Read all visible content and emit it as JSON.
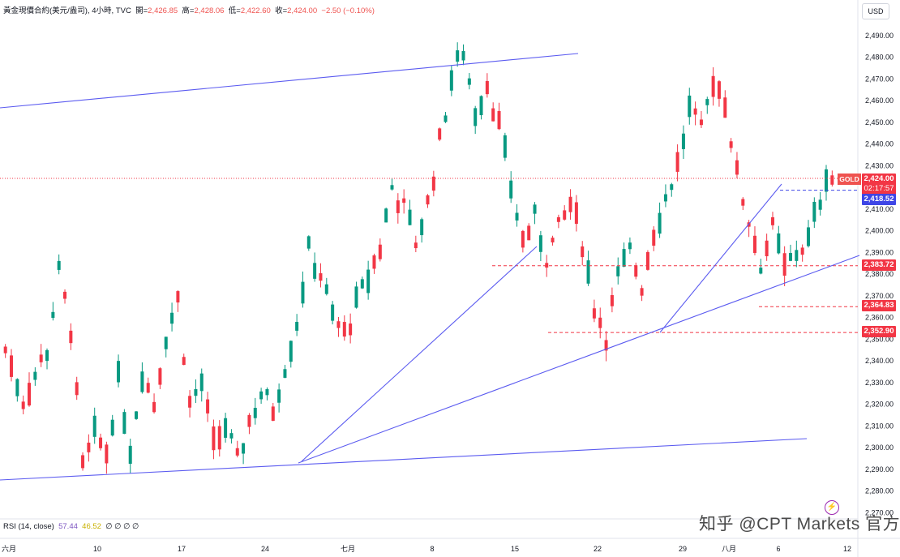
{
  "legend": {
    "symbol": "黃金現價合約(美元/盎司), 4小時, TVC",
    "open_label": "開=",
    "open": "2,426.85",
    "high_label": "高=",
    "high": "2,428.06",
    "low_label": "低=",
    "low": "2,422.60",
    "close_label": "收=",
    "close": "2,424.00",
    "change": "−2.50 (−0.10%)"
  },
  "currency_button": "USD",
  "rsi_indicator": {
    "label": "RSI (14, close)",
    "value1": "57.44",
    "value2": "46.52",
    "empties": "∅ ∅ ∅ ∅"
  },
  "watermark": "知乎 @CPT Markets 官方",
  "alert_icon": "lightning-icon",
  "price_tags": {
    "current": "2,424.00",
    "countdown": "02:17:57",
    "level_blue": "2,418.52",
    "level1": "2,383.72",
    "level2": "2,364.83",
    "level3": "2,352.90",
    "symbol_tag": "GOLD"
  },
  "colors": {
    "up": "#089981",
    "down": "#f23645",
    "trendline": "#5b5bf0",
    "dashed_red": "#f23645",
    "blue_tag": "#3e46e6"
  },
  "chart_data": {
    "type": "candlestick",
    "y_axis_ticks": [
      "2,490.00",
      "2,480.00",
      "2,470.00",
      "2,460.00",
      "2,450.00",
      "2,440.00",
      "2,430.00",
      "2,420.00",
      "2,410.00",
      "2,400.00",
      "2,390.00",
      "2,380.00",
      "2,370.00",
      "2,360.00",
      "2,350.00",
      "2,340.00",
      "2,330.00",
      "2,320.00",
      "2,310.00",
      "2,300.00",
      "2,290.00",
      "2,280.00",
      "2,270.00"
    ],
    "y_range": [
      2267,
      2495
    ],
    "x_axis_ticks": [
      "六月",
      "10",
      "17",
      "24",
      "七月",
      "8",
      "15",
      "22",
      "29",
      "八月",
      "6",
      "12"
    ],
    "path_points": [
      [
        0,
        2345
      ],
      [
        3,
        2322
      ],
      [
        7,
        2345
      ],
      [
        9,
        2380
      ],
      [
        11,
        2355
      ],
      [
        13,
        2290
      ],
      [
        15,
        2305
      ],
      [
        17,
        2298
      ],
      [
        19,
        2330
      ],
      [
        21,
        2300
      ],
      [
        23,
        2335
      ],
      [
        25,
        2320
      ],
      [
        27,
        2352
      ],
      [
        29,
        2368
      ],
      [
        31,
        2320
      ],
      [
        33,
        2330
      ],
      [
        35,
        2300
      ],
      [
        37,
        2310
      ],
      [
        39,
        2293
      ],
      [
        41,
        2312
      ],
      [
        43,
        2325
      ],
      [
        45,
        2318
      ],
      [
        47,
        2338
      ],
      [
        49,
        2358
      ],
      [
        51,
        2390
      ],
      [
        53,
        2380
      ],
      [
        55,
        2360
      ],
      [
        57,
        2352
      ],
      [
        59,
        2365
      ],
      [
        61,
        2378
      ],
      [
        63,
        2392
      ],
      [
        65,
        2420
      ],
      [
        67,
        2410
      ],
      [
        69,
        2395
      ],
      [
        71,
        2412
      ],
      [
        73,
        2440
      ],
      [
        75,
        2470
      ],
      [
        77,
        2483
      ],
      [
        79,
        2455
      ],
      [
        81,
        2468
      ],
      [
        83,
        2448
      ],
      [
        85,
        2420
      ],
      [
        87,
        2395
      ],
      [
        89,
        2405
      ],
      [
        91,
        2388
      ],
      [
        93,
        2400
      ],
      [
        95,
        2412
      ],
      [
        97,
        2395
      ],
      [
        99,
        2365
      ],
      [
        101,
        2352
      ],
      [
        103,
        2378
      ],
      [
        105,
        2390
      ],
      [
        107,
        2375
      ],
      [
        109,
        2400
      ],
      [
        111,
        2415
      ],
      [
        113,
        2430
      ],
      [
        115,
        2455
      ],
      [
        117,
        2445
      ],
      [
        119,
        2470
      ],
      [
        121,
        2460
      ],
      [
        123,
        2425
      ],
      [
        125,
        2405
      ],
      [
        127,
        2385
      ],
      [
        129,
        2400
      ],
      [
        131,
        2382
      ],
      [
        133,
        2390
      ],
      [
        135,
        2395
      ],
      [
        137,
        2415
      ],
      [
        138,
        2427
      ],
      [
        139,
        2424
      ]
    ],
    "x_count": 140,
    "trendlines_note": "price trendlines drawn on chart",
    "horizontal_levels": [
      2418.52,
      2383.72,
      2364.83,
      2352.9
    ],
    "current_price": 2424.0
  }
}
